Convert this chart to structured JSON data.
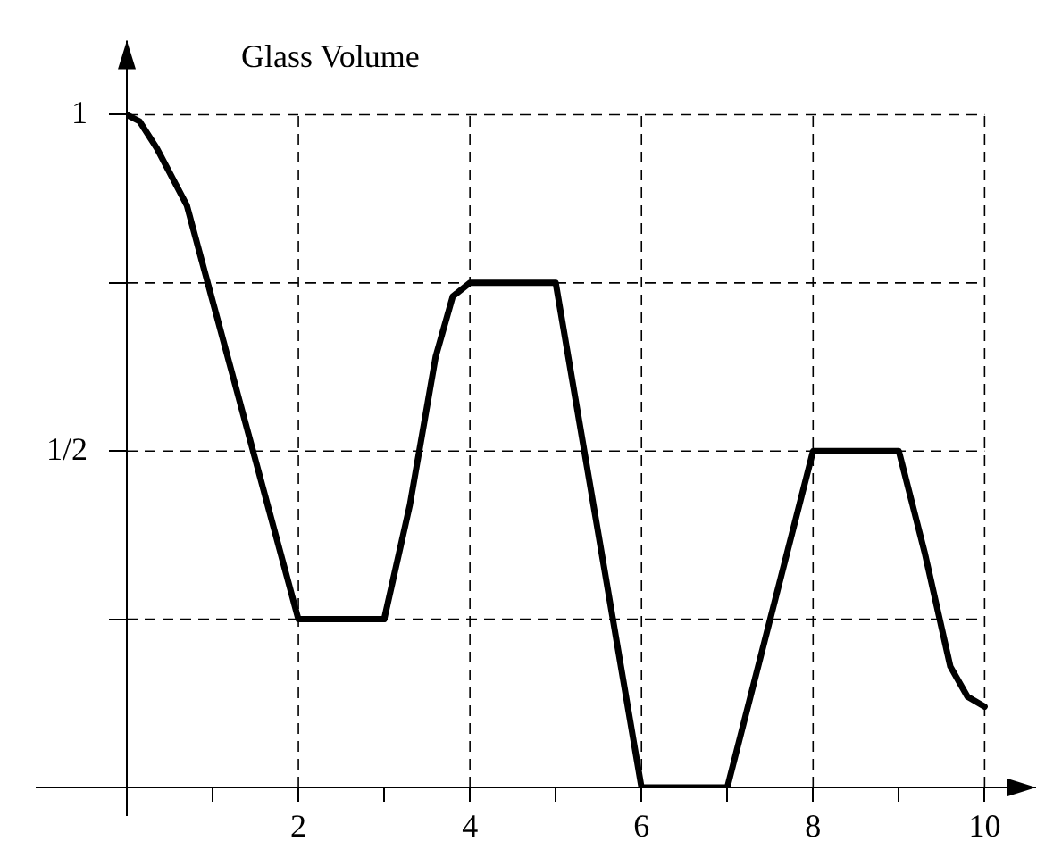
{
  "chart_data": {
    "type": "line",
    "title": "Glass Volume",
    "x": [
      0,
      0.15,
      0.35,
      0.7,
      2,
      3,
      3.3,
      3.6,
      3.8,
      4,
      5,
      6,
      7,
      8,
      9,
      9.3,
      9.6,
      9.8,
      10
    ],
    "series": [
      {
        "color": "#000000",
        "values": [
          1,
          0.99,
          0.95,
          0.865,
          0.25,
          0.25,
          0.42,
          0.64,
          0.73,
          0.75,
          0.75,
          0,
          0,
          0.5,
          0.5,
          0.35,
          0.18,
          0.135,
          0.12
        ]
      }
    ],
    "xlim": [
      0,
      10.6
    ],
    "ylim": [
      0,
      1.11
    ],
    "xticks": [
      {
        "value": 1,
        "label": null
      },
      2,
      {
        "value": 3,
        "label": null
      },
      4,
      {
        "value": 5,
        "label": null
      },
      6,
      {
        "value": 7,
        "label": null
      },
      8,
      {
        "value": 9,
        "label": null
      },
      10
    ],
    "yticks": [
      {
        "value": 0.25,
        "label": null
      },
      {
        "value": 0.5,
        "label": "1/2"
      },
      {
        "value": 0.75,
        "label": null
      },
      1
    ],
    "grid": true,
    "legend": false,
    "marker": "none",
    "line_style": "solid"
  }
}
